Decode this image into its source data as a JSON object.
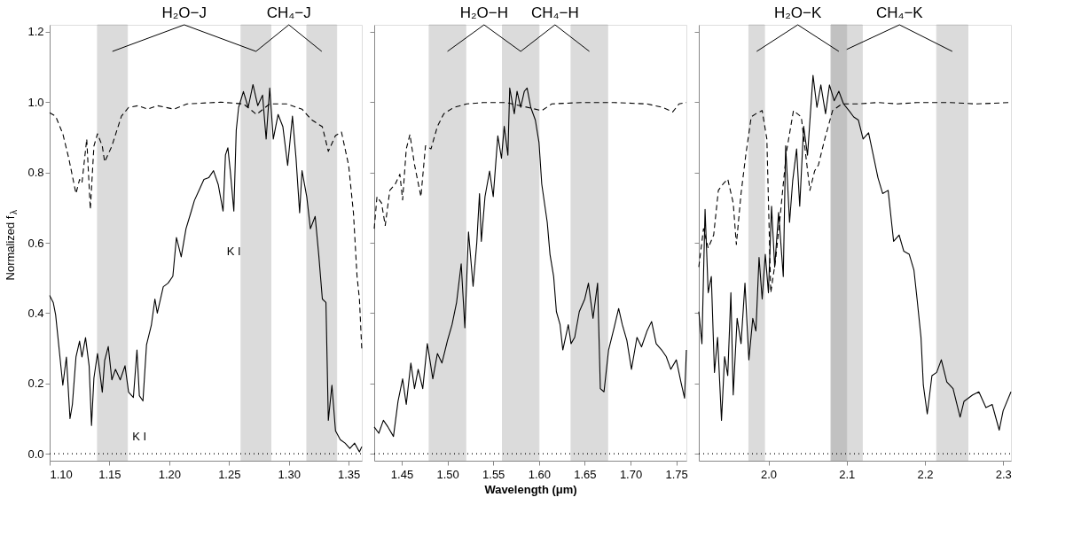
{
  "chart_data": [
    {
      "type": "line",
      "ylabel": "Normalized f$_{λ}$",
      "xlim": [
        1.1,
        1.361
      ],
      "ylim": [
        -0.02,
        1.22
      ],
      "xticks": [
        {
          "value": 1.1,
          "label": "1.10"
        },
        1.15,
        {
          "value": 1.2,
          "label": "1.20"
        },
        1.25,
        {
          "value": 1.3,
          "label": "1.30"
        },
        1.35
      ],
      "yticks": [
        {
          "value": 0,
          "label": "0.0"
        },
        0.2,
        0.4,
        0.6,
        0.8,
        {
          "value": 1,
          "label": "1.0"
        },
        1.2
      ],
      "grid": false,
      "series": [
        {
          "color": "#000000",
          "line_style": "solid",
          "x": [
            1.1,
            1.103,
            1.105,
            1.108,
            1.111,
            1.114,
            1.117,
            1.119,
            1.122,
            1.125,
            1.127,
            1.13,
            1.133,
            1.135,
            1.137,
            1.14,
            1.144,
            1.146,
            1.149,
            1.152,
            1.155,
            1.159,
            1.163,
            1.166,
            1.17,
            1.173,
            1.175,
            1.178,
            1.181,
            1.185,
            1.188,
            1.19,
            1.195,
            1.199,
            1.203,
            1.206,
            1.21,
            1.214,
            1.218,
            1.221,
            1.225,
            1.229,
            1.233,
            1.237,
            1.241,
            1.245,
            1.247,
            1.249,
            1.251,
            1.254,
            1.256,
            1.258,
            1.262,
            1.266,
            1.27,
            1.274,
            1.278,
            1.281,
            1.284,
            1.287,
            1.291,
            1.295,
            1.299,
            1.303,
            1.306,
            1.309,
            1.311,
            1.315,
            1.318,
            1.322,
            1.325,
            1.328,
            1.331,
            1.333,
            1.336,
            1.339,
            1.343,
            1.347,
            1.351,
            1.355,
            1.359,
            1.361
          ],
          "values": [
            0.45,
            0.43,
            0.395,
            0.295,
            0.195,
            0.275,
            0.1,
            0.14,
            0.275,
            0.32,
            0.275,
            0.33,
            0.25,
            0.08,
            0.215,
            0.285,
            0.175,
            0.265,
            0.305,
            0.21,
            0.24,
            0.21,
            0.25,
            0.175,
            0.16,
            0.295,
            0.165,
            0.15,
            0.31,
            0.365,
            0.44,
            0.4,
            0.475,
            0.485,
            0.505,
            0.615,
            0.56,
            0.64,
            0.685,
            0.72,
            0.75,
            0.78,
            0.785,
            0.805,
            0.765,
            0.69,
            0.85,
            0.87,
            0.805,
            0.69,
            0.92,
            0.985,
            1.03,
            0.985,
            1.05,
            0.99,
            1.02,
            0.895,
            1.04,
            0.895,
            0.965,
            0.93,
            0.82,
            0.96,
            0.84,
            0.685,
            0.805,
            0.73,
            0.64,
            0.675,
            0.565,
            0.44,
            0.43,
            0.095,
            0.195,
            0.065,
            0.04,
            0.03,
            0.015,
            0.03,
            0.005,
            0.02
          ]
        },
        {
          "color": "#000000",
          "line_style": "dashed",
          "x": [
            1.1,
            1.105,
            1.111,
            1.116,
            1.122,
            1.125,
            1.127,
            1.131,
            1.134,
            1.137,
            1.14,
            1.144,
            1.146,
            1.152,
            1.16,
            1.166,
            1.174,
            1.182,
            1.19,
            1.204,
            1.215,
            1.243,
            1.262,
            1.273,
            1.284,
            1.298,
            1.311,
            1.319,
            1.328,
            1.333,
            1.339,
            1.344,
            1.35,
            1.354,
            1.357,
            1.359,
            1.361
          ],
          "values": [
            0.97,
            0.96,
            0.91,
            0.84,
            0.74,
            0.78,
            0.77,
            0.895,
            0.695,
            0.875,
            0.91,
            0.875,
            0.83,
            0.875,
            0.96,
            0.985,
            0.99,
            0.98,
            0.99,
            0.98,
            0.995,
            1.0,
            0.995,
            0.965,
            0.995,
            0.995,
            0.98,
            0.95,
            0.93,
            0.86,
            0.905,
            0.915,
            0.82,
            0.685,
            0.505,
            0.44,
            0.295
          ]
        }
      ],
      "bands": [
        {
          "axis": "x",
          "from": 1.14,
          "to": 1.165,
          "color": "#808080"
        },
        {
          "axis": "x",
          "from": 1.26,
          "to": 1.285,
          "color": "#808080"
        },
        {
          "axis": "x",
          "from": 1.315,
          "to": 1.34,
          "color": "#808080"
        }
      ],
      "ref_lines": [
        {
          "axis": "y",
          "value": 0,
          "line_style": "dotted",
          "color": "#000000"
        }
      ],
      "annotations": [
        "H₂O−J",
        "CH₄−J",
        {
          "text": "K I",
          "x": 1.175,
          "y": 0.165
        },
        {
          "text": "K I",
          "x": 1.254,
          "y": 0.69
        }
      ]
    },
    {
      "type": "line",
      "xlabel": "Wavelength (μm)",
      "xlim": [
        1.42,
        1.761
      ],
      "ylim": [
        -0.02,
        1.22
      ],
      "xticks": [
        1.45,
        {
          "value": 1.5,
          "label": "1.50"
        },
        1.55,
        {
          "value": 1.6,
          "label": "1.60"
        },
        1.65,
        {
          "value": 1.7,
          "label": "1.70"
        },
        1.75
      ],
      "yticks": [
        0,
        0.2,
        0.4,
        0.6,
        0.8,
        1,
        1.2
      ],
      "tick_labels": "x",
      "grid": false,
      "series": [
        {
          "color": "#000000",
          "line_style": "solid",
          "x": [
            1.42,
            1.425,
            1.43,
            1.435,
            1.441,
            1.446,
            1.451,
            1.455,
            1.46,
            1.464,
            1.468,
            1.473,
            1.478,
            1.484,
            1.489,
            1.494,
            1.5,
            1.505,
            1.51,
            1.515,
            1.519,
            1.523,
            1.528,
            1.532,
            1.535,
            1.537,
            1.541,
            1.546,
            1.55,
            1.555,
            1.559,
            1.562,
            1.566,
            1.568,
            1.573,
            1.576,
            1.58,
            1.584,
            1.587,
            1.591,
            1.596,
            1.6,
            1.603,
            1.609,
            1.612,
            1.616,
            1.619,
            1.623,
            1.626,
            1.632,
            1.635,
            1.639,
            1.644,
            1.65,
            1.654,
            1.659,
            1.664,
            1.667,
            1.671,
            1.676,
            1.682,
            1.687,
            1.691,
            1.696,
            1.701,
            1.707,
            1.712,
            1.718,
            1.723,
            1.728,
            1.734,
            1.739,
            1.744,
            1.75,
            1.755,
            1.759,
            1.761
          ],
          "values": [
            0.076,
            0.058,
            0.095,
            0.076,
            0.049,
            0.149,
            0.213,
            0.14,
            0.258,
            0.185,
            0.24,
            0.185,
            0.313,
            0.213,
            0.285,
            0.258,
            0.322,
            0.367,
            0.431,
            0.54,
            0.358,
            0.631,
            0.476,
            0.599,
            0.74,
            0.604,
            0.731,
            0.804,
            0.731,
            0.904,
            0.84,
            0.931,
            0.849,
            1.04,
            0.967,
            1.031,
            0.985,
            1.031,
            1.04,
            0.985,
            0.949,
            0.885,
            0.767,
            0.658,
            0.567,
            0.504,
            0.404,
            0.367,
            0.295,
            0.367,
            0.313,
            0.331,
            0.404,
            0.44,
            0.485,
            0.385,
            0.485,
            0.185,
            0.176,
            0.295,
            0.358,
            0.413,
            0.367,
            0.322,
            0.24,
            0.331,
            0.304,
            0.349,
            0.376,
            0.313,
            0.295,
            0.276,
            0.24,
            0.267,
            0.204,
            0.158,
            0.295
          ]
        },
        {
          "color": "#000000",
          "line_style": "dashed",
          "x": [
            1.42,
            1.423,
            1.428,
            1.432,
            1.437,
            1.443,
            1.448,
            1.451,
            1.455,
            1.459,
            1.464,
            1.471,
            1.476,
            1.482,
            1.489,
            1.496,
            1.507,
            1.521,
            1.539,
            1.564,
            1.603,
            1.614,
            1.646,
            1.682,
            1.718,
            1.735,
            1.746,
            1.753,
            1.761
          ],
          "values": [
            0.64,
            0.731,
            0.713,
            0.649,
            0.749,
            0.767,
            0.795,
            0.722,
            0.867,
            0.908,
            0.822,
            0.731,
            0.876,
            0.867,
            0.931,
            0.967,
            0.985,
            0.995,
            0.999,
            0.999,
            0.976,
            0.995,
            0.999,
            0.999,
            0.995,
            0.985,
            0.972,
            0.995,
            0.999
          ]
        }
      ],
      "bands": [
        {
          "axis": "x",
          "from": 1.48,
          "to": 1.52,
          "color": "#808080"
        },
        {
          "axis": "x",
          "from": 1.56,
          "to": 1.6,
          "color": "#808080"
        },
        {
          "axis": "x",
          "from": 1.635,
          "to": 1.675,
          "color": "#808080"
        }
      ],
      "ref_lines": [
        {
          "axis": "y",
          "value": 0,
          "line_style": "dotted",
          "color": "#000000"
        }
      ],
      "annotations": [
        "H₂O−H",
        "CH₄−H"
      ]
    },
    {
      "type": "line",
      "xlim": [
        1.911,
        2.31
      ],
      "ylim": [
        -0.02,
        1.22
      ],
      "xticks": [
        {
          "value": 2,
          "label": "2.0"
        },
        2.1,
        2.2,
        2.3
      ],
      "yticks": [
        0,
        0.2,
        0.4,
        0.6,
        0.8,
        1,
        1.2
      ],
      "tick_labels": "x",
      "grid": false,
      "series": [
        {
          "color": "#000000",
          "line_style": "solid",
          "x": [
            1.911,
            1.915,
            1.919,
            1.923,
            1.927,
            1.931,
            1.935,
            1.94,
            1.944,
            1.948,
            1.952,
            1.955,
            1.96,
            1.965,
            1.97,
            1.975,
            1.98,
            1.984,
            1.988,
            1.992,
            1.996,
            2.0,
            2.004,
            2.008,
            2.013,
            2.019,
            2.022,
            2.027,
            2.031,
            2.036,
            2.04,
            2.045,
            2.05,
            2.057,
            2.062,
            2.067,
            2.073,
            2.078,
            2.084,
            2.09,
            2.096,
            2.103,
            2.109,
            2.115,
            2.121,
            2.128,
            2.134,
            2.14,
            2.146,
            2.153,
            2.16,
            2.167,
            2.173,
            2.18,
            2.186,
            2.19,
            2.195,
            2.198,
            2.203,
            2.209,
            2.215,
            2.221,
            2.228,
            2.236,
            2.245,
            2.25,
            2.261,
            2.269,
            2.278,
            2.286,
            2.295,
            2.3,
            2.31
          ],
          "values": [
            0.404,
            0.313,
            0.695,
            0.458,
            0.504,
            0.231,
            0.331,
            0.095,
            0.276,
            0.222,
            0.458,
            0.167,
            0.385,
            0.313,
            0.485,
            0.267,
            0.385,
            0.349,
            0.558,
            0.44,
            0.567,
            0.458,
            0.704,
            0.531,
            0.686,
            0.504,
            0.876,
            0.658,
            0.776,
            0.867,
            0.704,
            0.931,
            0.849,
            1.076,
            0.985,
            1.049,
            0.967,
            1.049,
            1.004,
            1.031,
            0.995,
            0.976,
            0.958,
            0.949,
            0.895,
            0.913,
            0.849,
            0.785,
            0.74,
            0.749,
            0.604,
            0.622,
            0.576,
            0.567,
            0.522,
            0.44,
            0.331,
            0.195,
            0.113,
            0.222,
            0.231,
            0.267,
            0.204,
            0.185,
            0.104,
            0.149,
            0.167,
            0.176,
            0.131,
            0.14,
            0.067,
            0.122,
            0.176
          ]
        },
        {
          "color": "#000000",
          "line_style": "dashed",
          "x": [
            1.911,
            1.917,
            1.923,
            1.93,
            1.936,
            1.942,
            1.948,
            1.955,
            1.959,
            1.965,
            1.971,
            1.978,
            1.984,
            1.992,
            1.998,
            2.003,
            2.009,
            2.015,
            2.023,
            2.032,
            2.042,
            2.053,
            2.059,
            2.064,
            2.072,
            2.082,
            2.094,
            2.115,
            2.14,
            2.165,
            2.19,
            2.232,
            2.265,
            2.31
          ],
          "values": [
            0.531,
            0.64,
            0.585,
            0.622,
            0.749,
            0.767,
            0.781,
            0.713,
            0.595,
            0.74,
            0.849,
            0.958,
            0.967,
            0.976,
            0.895,
            0.458,
            0.549,
            0.676,
            0.858,
            0.976,
            0.958,
            0.749,
            0.804,
            0.822,
            0.895,
            0.976,
            0.995,
            0.995,
            0.999,
            0.995,
            0.999,
            0.999,
            0.995,
            0.999
          ]
        }
      ],
      "bands": [
        {
          "axis": "x",
          "from": 1.975,
          "to": 1.995,
          "color": "#808080"
        },
        {
          "axis": "x",
          "from": 2.08,
          "to": 2.1,
          "color": "#808080"
        },
        {
          "axis": "x",
          "from": 2.08,
          "to": 2.12,
          "color": "#808080"
        },
        {
          "axis": "x",
          "from": 2.215,
          "to": 2.255,
          "color": "#808080"
        }
      ],
      "ref_lines": [
        {
          "axis": "y",
          "value": 0,
          "line_style": "dotted",
          "color": "#000000"
        }
      ],
      "annotations": [
        "H₂O−K",
        {
          "text": "CH₄−K",
          "x": 2.1,
          "y": 1.15
        }
      ]
    }
  ]
}
